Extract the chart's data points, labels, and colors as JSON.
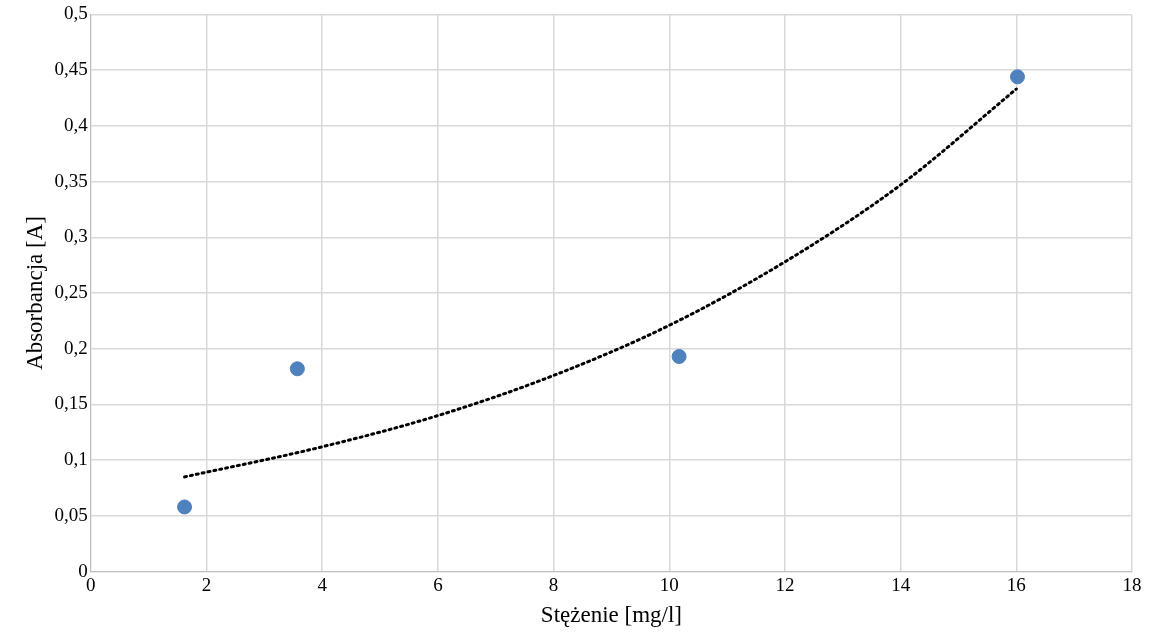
{
  "chart_data": {
    "type": "scatter",
    "xlabel": "Stężenie [mg/l]",
    "ylabel": "Absorbancja [A]",
    "xlim": [
      0,
      18
    ],
    "xticks": [
      0,
      2,
      4,
      6,
      8,
      10,
      12,
      14,
      16,
      18
    ],
    "ylim": [
      0,
      0.5
    ],
    "yticks": [
      {
        "value": 0,
        "label": "0"
      },
      {
        "value": 0.05,
        "label": "0,05"
      },
      {
        "value": 0.1,
        "label": "0,1"
      },
      {
        "value": 0.15,
        "label": "0,15"
      },
      {
        "value": 0.2,
        "label": "0,2"
      },
      {
        "value": 0.25,
        "label": "0,25"
      },
      {
        "value": 0.3,
        "label": "0,3"
      },
      {
        "value": 0.35,
        "label": "0,35"
      },
      {
        "value": 0.4,
        "label": "0,4"
      },
      {
        "value": 0.45,
        "label": "0,45"
      },
      {
        "value": 0.5,
        "label": "0,5"
      }
    ],
    "grid": true,
    "legend": false,
    "marker": "circle",
    "series": [
      {
        "type": "scatter",
        "color": "#4f81bd",
        "x": [
          1.62,
          3.57,
          10.17,
          16.02
        ],
        "values": [
          0.058,
          0.182,
          0.193,
          0.444
        ]
      },
      {
        "type": "line",
        "color": "#000000",
        "line_style": "dotted",
        "marker": "none",
        "x": [
          1.62,
          4,
          6,
          8,
          10,
          12,
          14,
          16
        ],
        "values": [
          0.085,
          0.112,
          0.14,
          0.176,
          0.221,
          0.278,
          0.347,
          0.433
        ]
      }
    ]
  }
}
